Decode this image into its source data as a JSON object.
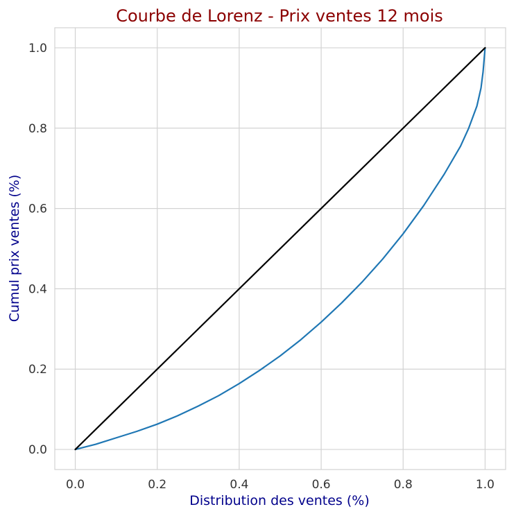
{
  "chart_data": {
    "type": "line",
    "title": "Courbe de Lorenz - Prix ventes 12 mois",
    "xlabel": "Distribution des ventes (%)",
    "ylabel": "Cumul prix ventes (%)",
    "xlim": [
      -0.05,
      1.05
    ],
    "ylim": [
      -0.05,
      1.05
    ],
    "xticks": [
      "0.0",
      "0.2",
      "0.4",
      "0.6",
      "0.8",
      "1.0"
    ],
    "yticks": [
      "0.0",
      "0.2",
      "0.4",
      "0.6",
      "0.8",
      "1.0"
    ],
    "grid": true,
    "series": [
      {
        "color": "#1f77b4",
        "x": [
          0.0,
          0.05,
          0.1,
          0.15,
          0.2,
          0.25,
          0.3,
          0.35,
          0.4,
          0.45,
          0.5,
          0.55,
          0.6,
          0.65,
          0.7,
          0.75,
          0.8,
          0.85,
          0.9,
          0.94,
          0.96,
          0.98,
          0.99,
          0.995,
          1.0
        ],
        "y": [
          0.0,
          0.013,
          0.029,
          0.045,
          0.063,
          0.084,
          0.108,
          0.134,
          0.164,
          0.197,
          0.233,
          0.273,
          0.317,
          0.365,
          0.417,
          0.474,
          0.537,
          0.607,
          0.685,
          0.755,
          0.8,
          0.855,
          0.9,
          0.94,
          1.0
        ]
      },
      {
        "color": "#000000",
        "x": [
          0.0,
          1.0
        ],
        "y": [
          0.0,
          1.0
        ]
      }
    ],
    "colors": {
      "title": "#8b0000",
      "axis_label": "#00008b",
      "grid": "#d3d3d3"
    }
  }
}
